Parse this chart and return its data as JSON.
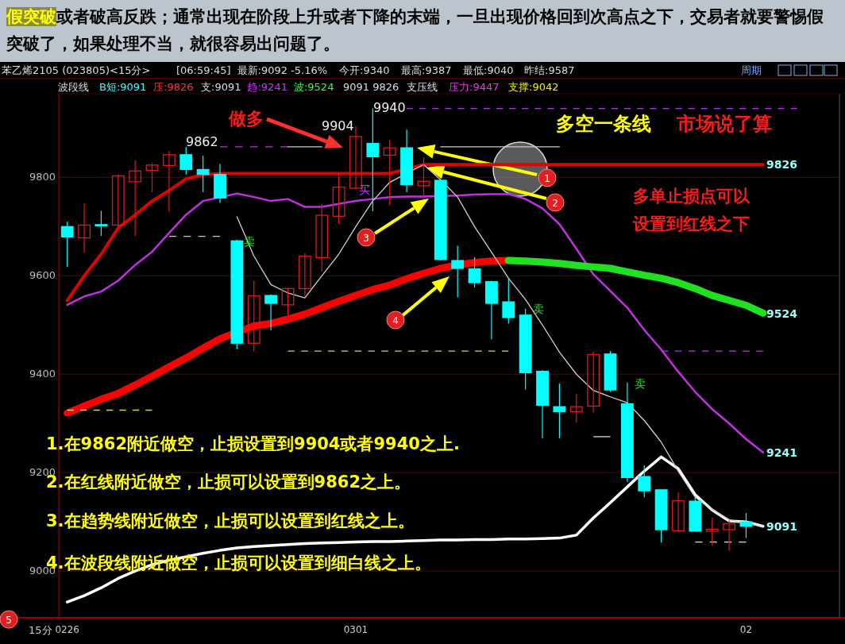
{
  "chart_data": {
    "type": "candlestick",
    "title": "假突破",
    "subtitle": "或者破高反跌；通常出现在阶段上升或者下降的末端，一旦出现价格回到次高点之下，交易者就要警惕假突破了，如果处理不当，就很容易出问题了。",
    "categories": [
      "0226",
      null,
      null,
      null,
      null,
      null,
      null,
      null,
      null,
      null,
      null,
      null,
      null,
      null,
      null,
      null,
      null,
      "0301",
      null,
      null,
      null,
      null,
      null,
      null,
      null,
      null,
      null,
      null,
      null,
      null,
      null,
      null,
      null,
      null,
      null,
      null,
      null,
      null,
      null,
      null,
      "02",
      null,
      null,
      null,
      null,
      null
    ],
    "ohlc": [
      [
        9700,
        9710,
        9618,
        9679
      ],
      [
        9677,
        9747,
        9647,
        9703
      ],
      [
        9704,
        9732,
        9681,
        9702
      ],
      [
        9703,
        9806,
        9700,
        9803
      ],
      [
        9791,
        9835,
        9681,
        9813
      ],
      [
        9814,
        9829,
        9770,
        9825
      ],
      [
        9824,
        9854,
        9730,
        9846
      ],
      [
        9846,
        9862,
        9806,
        9816
      ],
      [
        9816,
        9844,
        9770,
        9806
      ],
      [
        9806,
        9827,
        9748,
        9758
      ],
      [
        9671,
        9673,
        9451,
        9463
      ],
      [
        9463,
        9590,
        9446,
        9559
      ],
      [
        9560,
        9562,
        9489,
        9544
      ],
      [
        9541,
        9576,
        9520,
        9574
      ],
      [
        9574,
        9646,
        9558,
        9640
      ],
      [
        9637,
        9746,
        9609,
        9723
      ],
      [
        9721,
        9809,
        9705,
        9780
      ],
      [
        9778,
        9904,
        9776,
        9883
      ],
      [
        9869,
        9940,
        9731,
        9842
      ],
      [
        9845,
        9876,
        9743,
        9860
      ],
      [
        9860,
        9897,
        9770,
        9785
      ],
      [
        9783,
        9841,
        9756,
        9792
      ],
      [
        9794,
        9796,
        9631,
        9633
      ],
      [
        9631,
        9661,
        9556,
        9615
      ],
      [
        9614,
        9638,
        9576,
        9586
      ],
      [
        9588,
        9590,
        9471,
        9544
      ],
      [
        9547,
        9594,
        9503,
        9515
      ],
      [
        9520,
        9533,
        9369,
        9403
      ],
      [
        9406,
        9408,
        9270,
        9337
      ],
      [
        9334,
        9381,
        9270,
        9324
      ],
      [
        9324,
        9360,
        9302,
        9334
      ],
      [
        9335,
        9446,
        9322,
        9440
      ],
      [
        9441,
        9447,
        9364,
        9368
      ],
      [
        9340,
        9383,
        9181,
        9190
      ],
      [
        9192,
        9215,
        9150,
        9163
      ],
      [
        9165,
        9165,
        9058,
        9084
      ],
      [
        9082,
        9160,
        9082,
        9143
      ],
      [
        9142,
        9149,
        9081,
        9081
      ],
      [
        9081,
        9108,
        9052,
        9085
      ],
      [
        9084,
        9103,
        9041,
        9096
      ],
      [
        9100,
        9118,
        9067,
        9091
      ],
      null,
      null,
      null,
      null,
      null
    ],
    "series": [
      {
        "type": "line",
        "color": "#e00000",
        "values": [
          9550,
          9600,
          9644,
          9697,
          9724,
          9752,
          9773,
          9797,
          9805,
          9808,
          9808,
          9808,
          9808,
          9808,
          9808,
          9808,
          9808,
          9808,
          9808,
          9808,
          null,
          9826,
          9826,
          9826,
          9826,
          9826,
          9826,
          9826,
          9826,
          9826,
          9826,
          9826,
          9826,
          9826,
          9826,
          9826,
          9826,
          9826,
          9826,
          9826,
          9826,
          9826,
          null,
          null,
          null,
          null
        ]
      },
      {
        "type": "line",
        "color": "#c030e0",
        "values": [
          9541,
          9558,
          9568,
          9590,
          9622,
          9649,
          9687,
          9724,
          9752,
          null,
          9767,
          9760,
          9752,
          9756,
          9740,
          9740,
          9746,
          9752,
          9756,
          9760,
          9761,
          9761,
          null,
          9763,
          9765,
          9766,
          9766,
          9756,
          9737,
          9705,
          9655,
          9603,
          9569,
          9535,
          9490,
          9450,
          9405,
          9364,
          9329,
          9300,
          9268,
          9241,
          null,
          null,
          null,
          null
        ]
      },
      {
        "type": "line",
        "color": "#ff0000",
        "values": [
          9321,
          9335,
          9349,
          9361,
          9378,
          9396,
          9415,
          9433,
          9453,
          9472,
          null,
          9498,
          9503,
          9512,
          9522,
          9535,
          9548,
          9560,
          9572,
          9581,
          9594,
          9605,
          9615,
          9622,
          9627,
          9630,
          9631,
          null,
          null,
          null,
          null,
          null,
          null,
          null,
          null,
          null,
          null,
          null,
          null,
          null,
          null,
          null,
          null,
          null,
          null,
          null
        ]
      },
      {
        "type": "line",
        "color": "#20e020",
        "values": [
          null,
          null,
          null,
          null,
          null,
          null,
          null,
          null,
          null,
          null,
          null,
          null,
          null,
          null,
          null,
          null,
          null,
          null,
          null,
          null,
          null,
          null,
          null,
          null,
          null,
          null,
          9631,
          9630,
          9628,
          9625,
          9621,
          9618,
          9615,
          9608,
          9601,
          9595,
          9586,
          9574,
          9560,
          9550,
          9540,
          9524,
          null,
          null,
          null,
          null
        ]
      },
      {
        "type": "line",
        "color": "#ffffff",
        "values": [
          8937,
          8950,
          8966,
          8985,
          9000,
          9013,
          9022,
          9029,
          9036,
          9042,
          9047,
          9050,
          9052,
          9054,
          9056,
          9057,
          9058,
          9059,
          9060,
          9060,
          9061,
          9062,
          9063,
          9063,
          9064,
          9064,
          9065,
          9065,
          9066,
          9067,
          9073,
          9108,
          9139,
          9171,
          9203,
          9232,
          9208,
          9155,
          9124,
          9102,
          9100,
          9091,
          null,
          null,
          null,
          null
        ]
      },
      {
        "type": "line",
        "color": "#d0d0d0",
        "values": [
          null,
          null,
          null,
          null,
          null,
          null,
          null,
          null,
          null,
          null,
          9720,
          9640,
          9582,
          9565,
          9555,
          9600,
          9644,
          9700,
          9752,
          9790,
          null,
          9826,
          9795,
          9760,
          9700,
          9648,
          9595,
          9552,
          9500,
          9445,
          9400,
          9367,
          9354,
          9342,
          9306,
          9262,
          9203,
          9150,
          9125,
          9104,
          9097,
          9091,
          null,
          null,
          null,
          null
        ]
      },
      {
        "type": "line",
        "color": "#c030e0",
        "line_style": "dashed",
        "values": [
          null,
          null,
          null,
          null,
          null,
          null,
          null,
          null,
          null,
          9862,
          9862,
          9862,
          9862,
          9862,
          null,
          null,
          null,
          null,
          null,
          null,
          null,
          null,
          null,
          null,
          null,
          null,
          null,
          null,
          null,
          null,
          null,
          null,
          null,
          null,
          null,
          null,
          null,
          null,
          null,
          null,
          null,
          null,
          null,
          null,
          null,
          null
        ]
      },
      {
        "type": "line",
        "color": "#cccccc",
        "values": [
          null,
          null,
          null,
          null,
          null,
          null,
          null,
          null,
          null,
          null,
          null,
          null,
          null,
          9862,
          9862,
          9862,
          null,
          null,
          null,
          null,
          null,
          null,
          9862,
          9862,
          9862,
          9862,
          9862,
          9862,
          9862,
          9862,
          null,
          null,
          null,
          null,
          null,
          null,
          null,
          null,
          null,
          null,
          null,
          null,
          null,
          null,
          null,
          null
        ]
      },
      {
        "type": "line",
        "color": "#c030e0",
        "line_style": "dashed",
        "values": [
          null,
          null,
          null,
          null,
          null,
          null,
          null,
          null,
          null,
          null,
          null,
          null,
          null,
          null,
          null,
          null,
          null,
          null,
          null,
          null,
          9940,
          9940,
          9940,
          9940,
          9940,
          9940,
          9940,
          9940,
          9940,
          9940,
          9940,
          9940,
          9940,
          9940,
          9940,
          9940,
          9940,
          9940,
          9940,
          9940,
          9940,
          9940,
          9940,
          9940,
          null,
          null
        ]
      },
      {
        "type": "line",
        "color": "#e0d060",
        "line_style": "dashed",
        "values": [
          null,
          null,
          null,
          null,
          null,
          null,
          9680,
          9680,
          9680,
          9680,
          null,
          null,
          null,
          null,
          null,
          null,
          null,
          null,
          null,
          null,
          null,
          null,
          null,
          null,
          null,
          null,
          null,
          null,
          null,
          null,
          null,
          null,
          null,
          null,
          null,
          null,
          null,
          null,
          null,
          null,
          null,
          null,
          null,
          null,
          null,
          null
        ]
      },
      {
        "type": "line",
        "color": "#e0d060",
        "line_style": "dashed",
        "values": [
          null,
          null,
          null,
          null,
          null,
          null,
          null,
          null,
          null,
          null,
          null,
          null,
          null,
          9447,
          9447,
          9447,
          9447,
          9447,
          9447,
          9447,
          9447,
          9447,
          9447,
          9447,
          9447,
          9447,
          9447,
          null,
          null,
          null,
          null,
          null,
          null,
          null,
          null,
          null,
          null,
          null,
          null,
          null,
          null,
          null,
          null,
          null,
          null,
          null
        ]
      },
      {
        "type": "line",
        "color": "#c030e0",
        "line_style": "dashed",
        "values": [
          null,
          null,
          null,
          null,
          null,
          null,
          null,
          null,
          null,
          null,
          null,
          null,
          null,
          null,
          null,
          null,
          null,
          null,
          null,
          null,
          null,
          null,
          null,
          null,
          null,
          null,
          null,
          null,
          null,
          null,
          null,
          null,
          null,
          null,
          null,
          9447,
          9447,
          9447,
          9447,
          9447,
          9447,
          9447,
          null,
          null,
          null,
          null
        ]
      },
      {
        "type": "line",
        "color": "#e0d060",
        "line_style": "dashed",
        "values": [
          9327,
          9327,
          9327,
          9327,
          9327,
          9327,
          null,
          null,
          null,
          null,
          null,
          null,
          null,
          null,
          null,
          null,
          null,
          null,
          null,
          null,
          null,
          null,
          null,
          null,
          null,
          null,
          null,
          null,
          null,
          null,
          null,
          null,
          null,
          null,
          null,
          null,
          null,
          null,
          null,
          null,
          null,
          null,
          null,
          null,
          null,
          null
        ]
      },
      {
        "type": "line",
        "color": "#dddddd",
        "line_style": "dashed",
        "values": [
          null,
          null,
          null,
          null,
          null,
          null,
          null,
          null,
          null,
          null,
          null,
          null,
          null,
          null,
          null,
          null,
          null,
          null,
          null,
          null,
          null,
          null,
          null,
          null,
          null,
          null,
          null,
          null,
          null,
          null,
          null,
          9273,
          9273,
          null,
          null,
          null,
          null,
          null,
          null,
          null,
          null,
          null,
          null,
          null,
          null,
          null
        ]
      },
      {
        "type": "line",
        "color": "#dddddd",
        "line_style": "dashed",
        "values": [
          null,
          null,
          null,
          null,
          null,
          null,
          null,
          null,
          null,
          null,
          null,
          null,
          null,
          null,
          null,
          null,
          null,
          null,
          null,
          null,
          null,
          null,
          null,
          null,
          null,
          null,
          null,
          null,
          null,
          null,
          null,
          null,
          null,
          null,
          null,
          null,
          null,
          9059,
          9059,
          9059,
          9059,
          null,
          null,
          null,
          null,
          null
        ]
      }
    ],
    "ylim": [
      8905,
      9970
    ],
    "yticks": [
      9000,
      9200,
      9400,
      9600,
      9800
    ],
    "grid": "y",
    "annotations": [
      "苯乙烯2105 (023805)<15分>",
      "[06:59:45]",
      "最新:9092 -5.16%",
      "今开:9340",
      "最高:9387",
      "最低:9040",
      "昨结:9587",
      "周期",
      "波段线",
      "B短:9091",
      "压:9826",
      "支:9091",
      "趋:9241",
      "波:9524",
      "9091 9826",
      "支压线",
      "压力:9447",
      "支撑:9042",
      "9862",
      "9904",
      "9940",
      "做多",
      "多空一条线",
      "市场说了算",
      "多单止损点可以",
      "设置到红线之下",
      "1",
      "2",
      "3",
      "4",
      "5",
      "卖",
      "买",
      "卖",
      "卖",
      "1.在9862附近做空，止损设置到9904或者9940之上.",
      "2.在红线附近做空，止损可以设置到9862之上。",
      "3.在趋势线附近做空，止损可以设置到红线之上。",
      "4.在波段线附近做空，止损可以设置到细白线之上。",
      "9826",
      "9524",
      "9241",
      "9091",
      "15分"
    ]
  }
}
